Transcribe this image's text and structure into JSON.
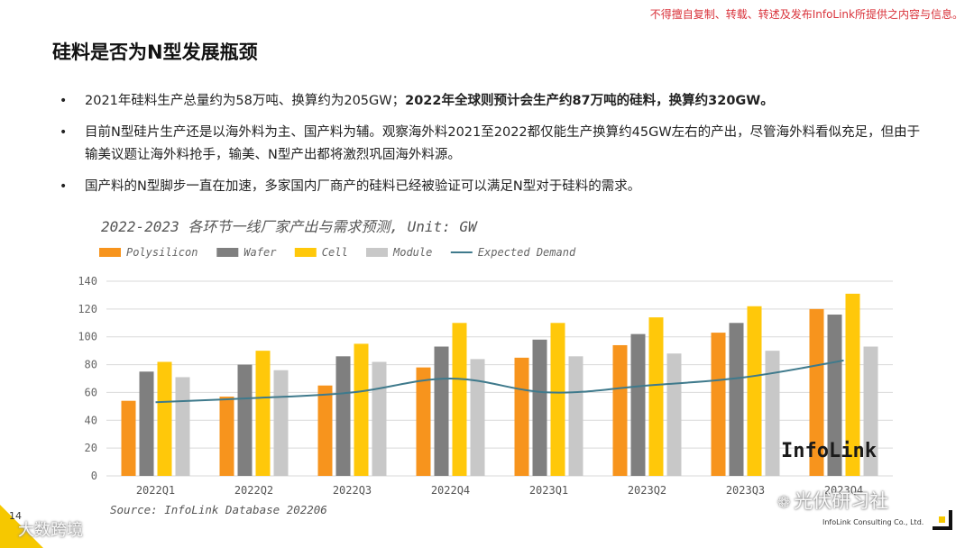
{
  "notice": "不得擅自复制、转载、转述及发布InfoLink所提供之内容与信息。",
  "title": "硅料是否为N型发展瓶颈",
  "bullets": [
    {
      "normal": "2021年硅料生产总量约为58万吨、换算约为205GW；",
      "bold": "2022年全球则预计会生产约87万吨的硅料，换算约320GW。"
    },
    {
      "normal": "目前N型硅片生产还是以海外料为主、国产料为辅。观察海外料2021至2022都仅能生产换算约45GW左右的产出，尽管海外料看似充足，但由于输美议题让海外料抢手，输美、N型产出都将激烈巩固海外料源。",
      "bold": ""
    },
    {
      "normal": "国产料的N型脚步一直在加速，多家国内厂商产的硅料已经被验证可以满足N型对于硅料的需求。",
      "bold": ""
    }
  ],
  "chart_title": "2022-2023 各环节一线厂家产出与需求预测, Unit: GW",
  "chart_data": {
    "type": "bar",
    "title": "2022-2023 各环节一线厂家产出与需求预测, Unit: GW",
    "categories": [
      "2022Q1",
      "2022Q2",
      "2022Q3",
      "2022Q4",
      "2023Q1",
      "2023Q2",
      "2023Q3",
      "2023Q4"
    ],
    "series": [
      {
        "name": "Polysilicon",
        "kind": "bar",
        "color": "#f7941d",
        "values": [
          54,
          57,
          65,
          78,
          85,
          94,
          103,
          120
        ]
      },
      {
        "name": "Wafer",
        "kind": "bar",
        "color": "#7f7f7f",
        "values": [
          75,
          80,
          86,
          93,
          98,
          102,
          110,
          116
        ]
      },
      {
        "name": "Cell",
        "kind": "bar",
        "color": "#ffc80a",
        "values": [
          82,
          90,
          95,
          110,
          110,
          114,
          122,
          131
        ]
      },
      {
        "name": "Module",
        "kind": "bar",
        "color": "#c8c8c8",
        "values": [
          71,
          76,
          82,
          84,
          86,
          88,
          90,
          93
        ]
      },
      {
        "name": "Expected Demand",
        "kind": "line",
        "color": "#3f7a8c",
        "values": [
          53,
          56,
          60,
          70,
          60,
          65,
          71,
          83
        ]
      }
    ],
    "yticks": [
      0,
      20,
      40,
      60,
      80,
      100,
      120,
      140
    ],
    "ylim": [
      0,
      140
    ],
    "grid": true,
    "legend_position": "top-left"
  },
  "logo_text": "InfoLink",
  "source": "Source: InfoLink Database 202206",
  "page_number": "14",
  "watermark_left": "大数跨境",
  "watermark_right": "光伏研习社",
  "company_name": "InfoLink Consulting Co., Ltd."
}
